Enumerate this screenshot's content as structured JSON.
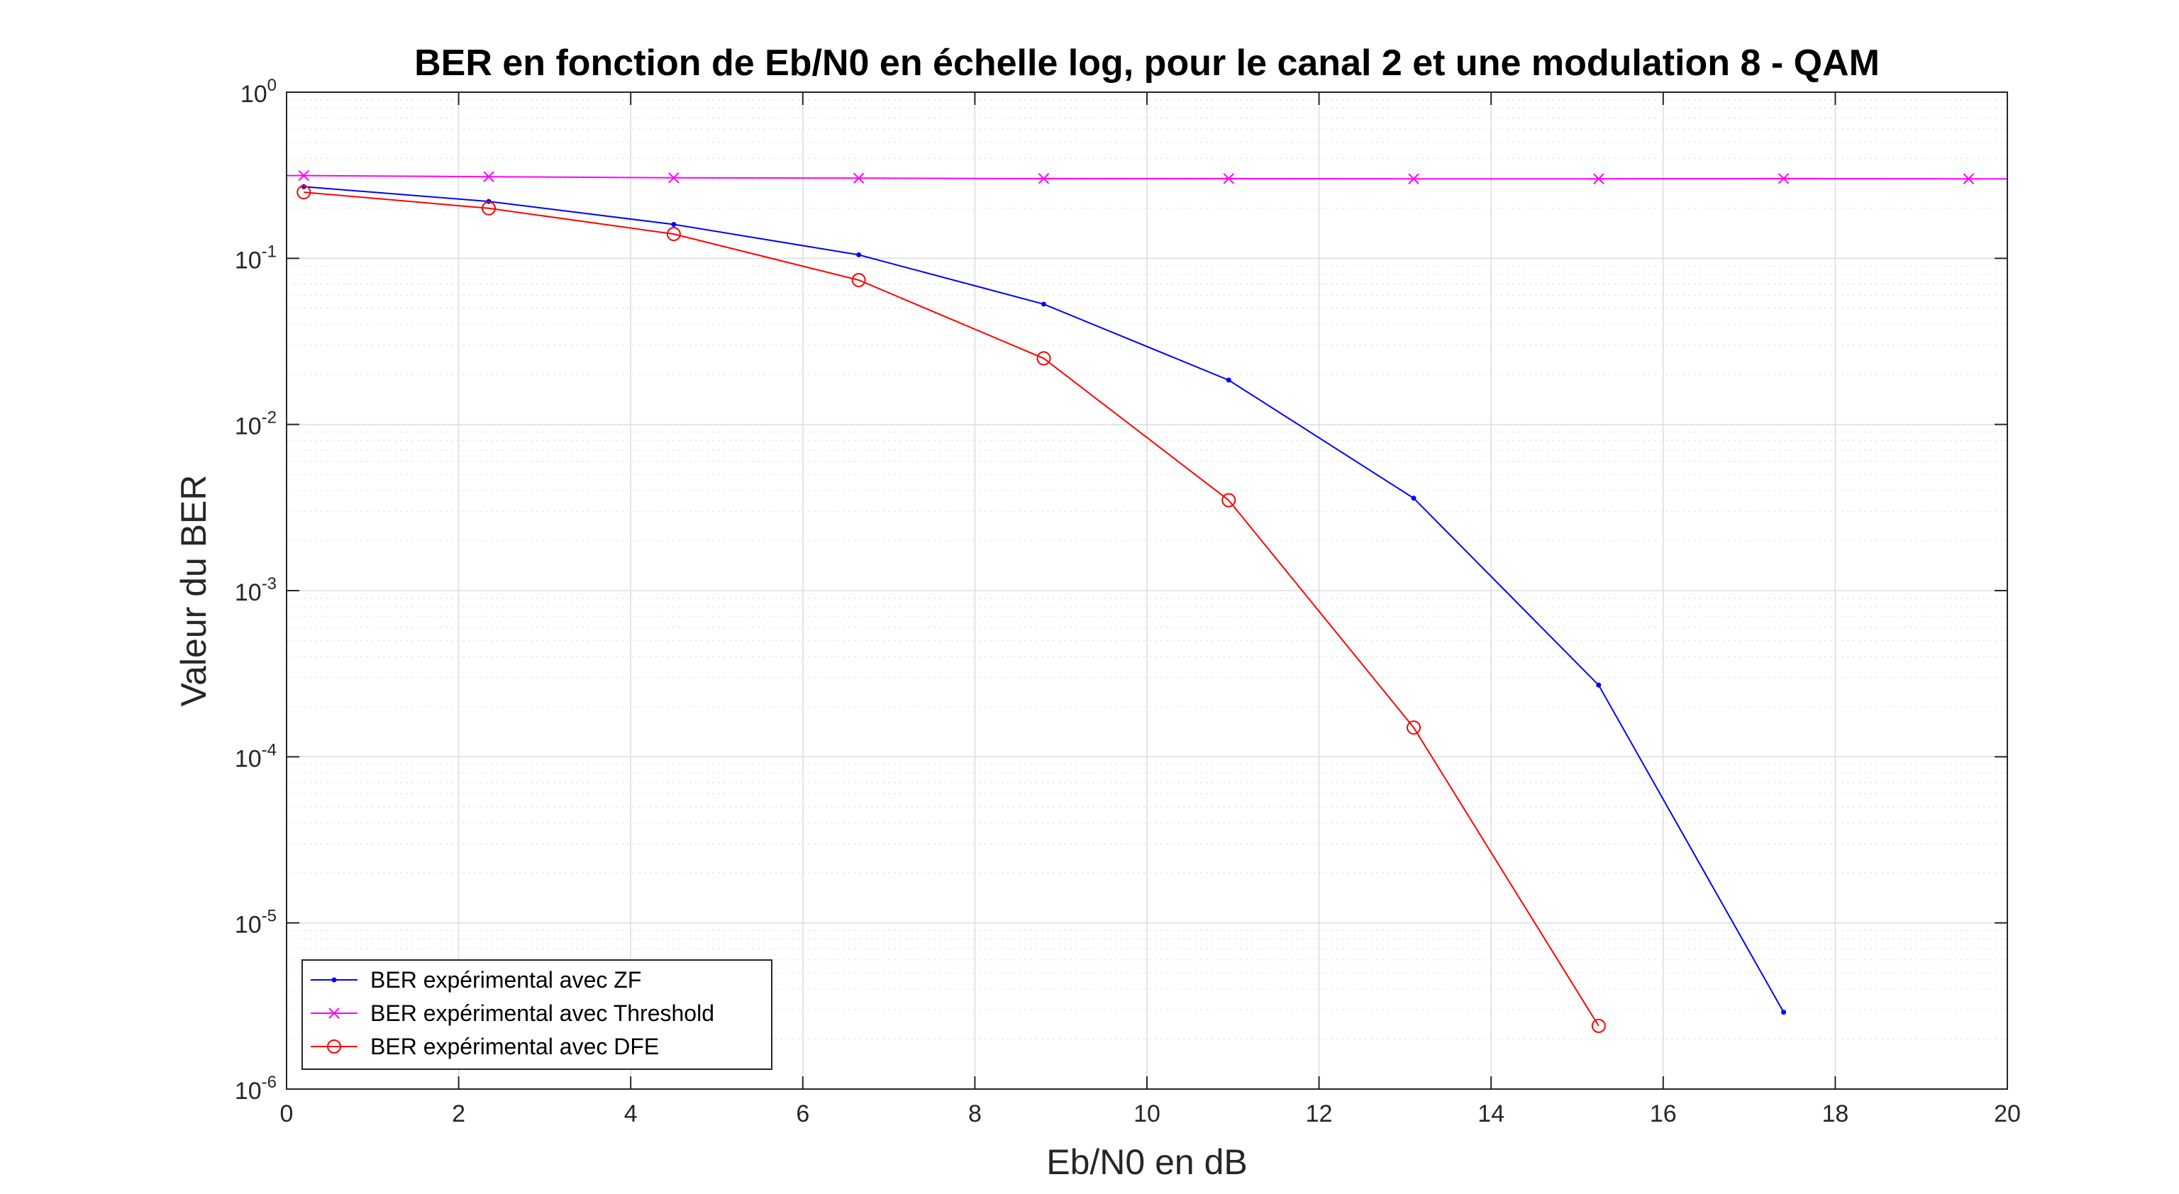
{
  "chart_data": {
    "type": "line",
    "title": "BER en fonction de Eb/N0 en échelle log, pour le canal 2 et une modulation 8 - QAM",
    "xlabel": "Eb/N0 en dB",
    "ylabel": "Valeur du BER",
    "xlim": [
      0,
      20
    ],
    "ylim": [
      1e-06,
      1
    ],
    "yscale": "log",
    "grid": true,
    "minor_grid": true,
    "legend_position": "bottom-left",
    "x_ticks": [
      0,
      2,
      4,
      6,
      8,
      10,
      12,
      14,
      16,
      18,
      20
    ],
    "x_tick_labels": [
      "0",
      "2",
      "4",
      "6",
      "8",
      "10",
      "12",
      "14",
      "16",
      "18",
      "20"
    ],
    "y_ticks": [
      {
        "value": 1,
        "base": "10",
        "exp": "0"
      },
      {
        "value": 0.1,
        "base": "10",
        "exp": "-1"
      },
      {
        "value": 0.01,
        "base": "10",
        "exp": "-2"
      },
      {
        "value": 0.001,
        "base": "10",
        "exp": "-3"
      },
      {
        "value": 0.0001,
        "base": "10",
        "exp": "-4"
      },
      {
        "value": 1e-05,
        "base": "10",
        "exp": "-5"
      },
      {
        "value": 1e-06,
        "base": "10",
        "exp": "-6"
      }
    ],
    "series": [
      {
        "name": "BER expérimental avec ZF",
        "color": "#0000ff",
        "marker": "dot",
        "x": [
          0.2,
          2.35,
          4.5,
          6.65,
          8.8,
          10.95,
          13.1,
          15.25,
          17.4
        ],
        "y": [
          0.27,
          0.22,
          0.16,
          0.105,
          0.053,
          0.0185,
          0.0036,
          0.00027,
          2.9e-06
        ]
      },
      {
        "name": "BER expérimental avec Threshold",
        "color": "#ff00ff",
        "marker": "x",
        "x": [
          0.2,
          2.35,
          4.5,
          6.65,
          8.8,
          10.95,
          13.1,
          15.25,
          17.4,
          19.55
        ],
        "y": [
          0.315,
          0.31,
          0.305,
          0.304,
          0.302,
          0.302,
          0.301,
          0.301,
          0.302,
          0.301
        ]
      },
      {
        "name": "BER expérimental avec DFE",
        "color": "#ff0000",
        "marker": "circle",
        "x": [
          0.2,
          2.35,
          4.5,
          6.65,
          8.8,
          10.95,
          13.1,
          15.25
        ],
        "y": [
          0.25,
          0.2,
          0.14,
          0.074,
          0.025,
          0.0035,
          0.00015,
          2.4e-06
        ]
      }
    ]
  }
}
